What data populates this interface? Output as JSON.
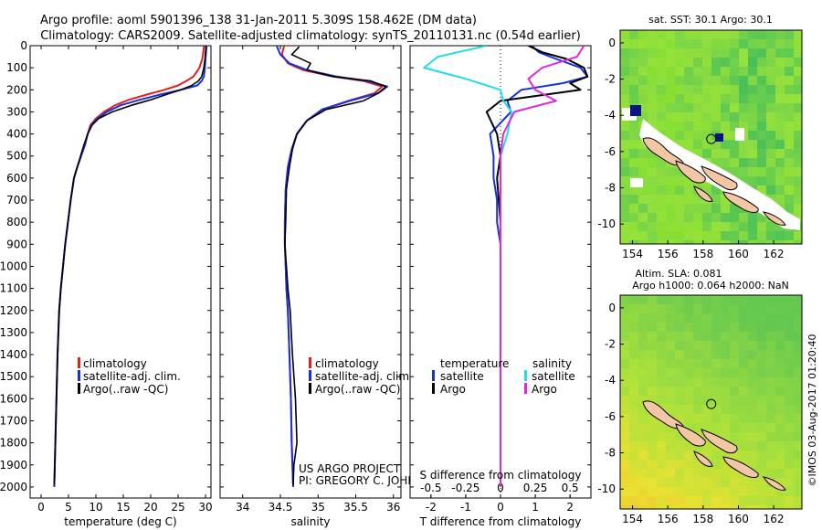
{
  "header": {
    "line1": "Argo profile: aoml 5901396_138 31-Jan-2011 5.309S 158.462E (DM data)",
    "line2": "Climatology: CARS2009. Satellite-adjusted climatology: synTS_20110131.nc (0.54d earlier)"
  },
  "colors": {
    "climatology": "#e0201c",
    "satellite": "#1530e0",
    "argo": "#000000",
    "salinity_sat": "#22dde8",
    "salinity_argo": "#e02ad8"
  },
  "chart_data": [
    {
      "type": "line",
      "title": "",
      "xlabel": "temperature (deg C)",
      "ylabel": "",
      "xlim": [
        -2,
        31
      ],
      "ylim": [
        2050,
        0
      ],
      "xticks": [
        0,
        5,
        10,
        15,
        20,
        25,
        30
      ],
      "yticks": [
        0,
        100,
        200,
        300,
        400,
        500,
        600,
        700,
        800,
        900,
        1000,
        1100,
        1200,
        1300,
        1400,
        1500,
        1600,
        1700,
        1800,
        1900,
        2000
      ],
      "legend": [
        "climatology",
        "satellite-adj. clim.",
        "Argo(..raw -QC)"
      ],
      "legend_position": "lower-middle",
      "series": [
        {
          "name": "climatology",
          "color_key": "climatology",
          "x": [
            29.7,
            29.6,
            29.4,
            28.9,
            27.8,
            26.5,
            25.0,
            22.5,
            19.5,
            16.0,
            13.5,
            11.5,
            10.0,
            9.0,
            8.5,
            8.0,
            7.3,
            6.6,
            6.0,
            5.4,
            4.9,
            4.4,
            4.0,
            3.6,
            3.3,
            3.0,
            2.8,
            2.6,
            2.5,
            2.4
          ],
          "y": [
            0,
            30,
            60,
            100,
            140,
            160,
            180,
            200,
            220,
            245,
            270,
            300,
            330,
            360,
            400,
            450,
            500,
            550,
            600,
            700,
            800,
            900,
            1000,
            1100,
            1200,
            1400,
            1600,
            1800,
            1900,
            2000
          ]
        },
        {
          "name": "satellite-adj. clim.",
          "color_key": "satellite",
          "x": [
            30.2,
            30.1,
            30.0,
            29.9,
            29.7,
            29.3,
            28.5,
            25.5,
            22.0,
            18.0,
            14.5,
            12.0,
            10.3,
            9.2,
            8.5,
            8.0,
            7.3,
            6.6,
            6.0,
            5.4,
            4.9,
            4.4,
            4.0,
            3.6,
            3.3,
            3.0,
            2.8,
            2.6,
            2.5,
            2.4
          ],
          "y": [
            0,
            30,
            60,
            100,
            140,
            160,
            180,
            200,
            220,
            245,
            270,
            300,
            330,
            360,
            400,
            450,
            500,
            550,
            600,
            700,
            800,
            900,
            1000,
            1100,
            1200,
            1400,
            1600,
            1800,
            1900,
            2000
          ]
        },
        {
          "name": "Argo(..raw -QC)",
          "color_key": "argo",
          "x": [
            30.1,
            30.0,
            29.9,
            29.7,
            29.3,
            28.7,
            27.5,
            25.5,
            23.0,
            20.0,
            16.5,
            13.0,
            10.5,
            9.3,
            8.5,
            7.8,
            7.2,
            6.6,
            6.0,
            5.4,
            4.9,
            4.4,
            4.0,
            3.6,
            3.3,
            3.0,
            2.8,
            2.6,
            2.5,
            2.4
          ],
          "y": [
            5,
            30,
            60,
            100,
            140,
            160,
            180,
            200,
            220,
            245,
            270,
            300,
            330,
            360,
            400,
            450,
            500,
            550,
            600,
            700,
            800,
            900,
            1000,
            1100,
            1200,
            1400,
            1600,
            1800,
            1900,
            1990
          ]
        }
      ]
    },
    {
      "type": "line",
      "title": "",
      "xlabel": "salinity",
      "ylabel": "",
      "xlim": [
        33.7,
        36.1
      ],
      "ylim": [
        2050,
        0
      ],
      "xticks": [
        34,
        34.5,
        35,
        35.5,
        36
      ],
      "xtick_labels": [
        "34",
        "34.5",
        "35",
        "35.5",
        "36"
      ],
      "legend": [
        "climatology",
        "satellite-adj. clim.",
        "Argo(..raw -QC)"
      ],
      "legend_position": "lower-middle",
      "annotation_lines": [
        "US ARGO PROJECT",
        "PI: GREGORY C. JOHNSON"
      ],
      "series": [
        {
          "name": "climatology",
          "color_key": "climatology",
          "x": [
            34.55,
            34.52,
            34.6,
            34.8,
            35.2,
            35.6,
            35.85,
            35.75,
            35.4,
            35.05,
            34.85,
            34.72,
            34.65,
            34.6,
            34.57,
            34.56,
            34.56,
            34.57,
            34.58,
            34.6,
            34.62,
            34.64,
            34.65,
            34.66,
            34.67
          ],
          "y": [
            0,
            40,
            80,
            110,
            140,
            160,
            185,
            215,
            250,
            290,
            340,
            400,
            470,
            550,
            650,
            800,
            900,
            1000,
            1100,
            1200,
            1400,
            1600,
            1800,
            1900,
            2000
          ]
        },
        {
          "name": "satellite-adj. clim.",
          "color_key": "satellite",
          "x": [
            34.45,
            34.5,
            34.62,
            34.85,
            35.25,
            35.65,
            35.92,
            35.8,
            35.42,
            35.05,
            34.85,
            34.72,
            34.65,
            34.6,
            34.57,
            34.56,
            34.56,
            34.57,
            34.58,
            34.6,
            34.62,
            34.64,
            34.65,
            34.66,
            34.67
          ],
          "y": [
            0,
            40,
            80,
            110,
            140,
            160,
            185,
            215,
            250,
            290,
            340,
            400,
            470,
            550,
            650,
            800,
            900,
            1000,
            1100,
            1200,
            1400,
            1600,
            1800,
            1900,
            2000
          ]
        },
        {
          "name": "Argo(..raw -QC)",
          "color_key": "argo",
          "x": [
            34.75,
            34.65,
            34.9,
            34.85,
            35.2,
            35.7,
            35.9,
            35.8,
            35.6,
            35.1,
            34.85,
            34.72,
            34.66,
            34.62,
            34.58,
            34.57,
            34.56,
            34.58,
            34.6,
            34.63,
            34.66,
            34.7,
            34.72,
            34.68,
            34.67
          ],
          "y": [
            5,
            40,
            80,
            110,
            140,
            160,
            185,
            215,
            250,
            290,
            340,
            400,
            470,
            550,
            650,
            800,
            900,
            1000,
            1100,
            1200,
            1400,
            1600,
            1800,
            1900,
            1990
          ]
        }
      ]
    },
    {
      "type": "line",
      "title": "",
      "xlabel_top": "S difference from climatology",
      "xlabel": "T difference from climatology",
      "ylim": [
        2050,
        0
      ],
      "t_xlim": [
        -2.6,
        2.6
      ],
      "t_xticks": [
        -2,
        -1,
        0,
        1,
        2
      ],
      "s_xticks": [
        -0.5,
        -0.25,
        0,
        0.25,
        0.5
      ],
      "s_xtick_labels": [
        "-0.5",
        "-0.25",
        "0",
        "0.25",
        "0.5"
      ],
      "legend_temperature_title": "temperature",
      "legend_salinity_title": "salinity",
      "legend": [
        "satellite",
        "Argo",
        "satellite",
        "Argo"
      ],
      "series": [
        {
          "name": "T satellite",
          "color_key": "satellite",
          "axis": "T",
          "x": [
            0.9,
            1.1,
            1.6,
            2.3,
            2.5,
            1.8,
            0.6,
            0.2,
            0.3,
            -0.3,
            -0.2,
            -0.2,
            -0.1,
            -0.1,
            0.0,
            0.0,
            0.0,
            0.0,
            0.0
          ],
          "y": [
            0,
            30,
            60,
            100,
            140,
            170,
            200,
            250,
            300,
            400,
            500,
            600,
            700,
            800,
            900,
            1200,
            1500,
            1800,
            2000
          ]
        },
        {
          "name": "T Argo",
          "color_key": "argo",
          "axis": "T",
          "x": [
            0.8,
            1.2,
            1.9,
            2.4,
            2.5,
            2.0,
            2.3,
            0.0,
            -0.4,
            -0.1,
            0.0,
            -0.1,
            -0.05,
            0.0,
            0.0,
            0.0,
            0.0,
            0.0,
            0.0
          ],
          "y": [
            0,
            30,
            60,
            100,
            140,
            170,
            200,
            250,
            300,
            400,
            500,
            600,
            700,
            800,
            900,
            1200,
            1500,
            1800,
            2000
          ]
        },
        {
          "name": "S satellite",
          "color_key": "salinity_sat",
          "axis": "S",
          "x": [
            -0.1,
            -0.45,
            -0.55,
            -0.25,
            0.0,
            0.02,
            0.08,
            0.05,
            0.0,
            0.0,
            0.0,
            0.0,
            0.0,
            0.0
          ],
          "y": [
            0,
            50,
            100,
            150,
            200,
            250,
            300,
            400,
            500,
            700,
            900,
            1200,
            1600,
            2000
          ]
        },
        {
          "name": "S Argo",
          "color_key": "salinity_argo",
          "axis": "S",
          "x": [
            0.6,
            0.55,
            0.3,
            0.2,
            0.25,
            0.4,
            0.1,
            0.02,
            0.0,
            0.0,
            0.0,
            0.0,
            0.0,
            0.0
          ],
          "y": [
            0,
            50,
            100,
            150,
            200,
            250,
            300,
            400,
            500,
            700,
            900,
            1200,
            1600,
            2000
          ]
        }
      ]
    },
    {
      "type": "heatmap",
      "title": "sat. SST: 30.1  Argo: 30.1",
      "xticks": [
        154,
        156,
        158,
        160,
        162
      ],
      "yticks": [
        0,
        -2,
        -4,
        -6,
        -8,
        -10
      ],
      "xlim": [
        153.3,
        163.6
      ],
      "ylim": [
        -11.1,
        0.7
      ],
      "profile_marker": {
        "lon": 158.462,
        "lat": -5.309
      }
    },
    {
      "type": "heatmap",
      "title_line1": "Altim. SLA: 0.081",
      "title_line2": "Argo h1000: 0.064 h2000: NaN",
      "xticks": [
        154,
        156,
        158,
        160,
        162
      ],
      "yticks": [
        0,
        -2,
        -4,
        -6,
        -8,
        -10
      ],
      "xlim": [
        153.3,
        163.6
      ],
      "ylim": [
        -11.1,
        0.7
      ],
      "profile_marker": {
        "lon": 158.462,
        "lat": -5.309
      }
    }
  ],
  "footer": {
    "credit": "©IMOS 03-Aug-2017 01:20:40"
  }
}
